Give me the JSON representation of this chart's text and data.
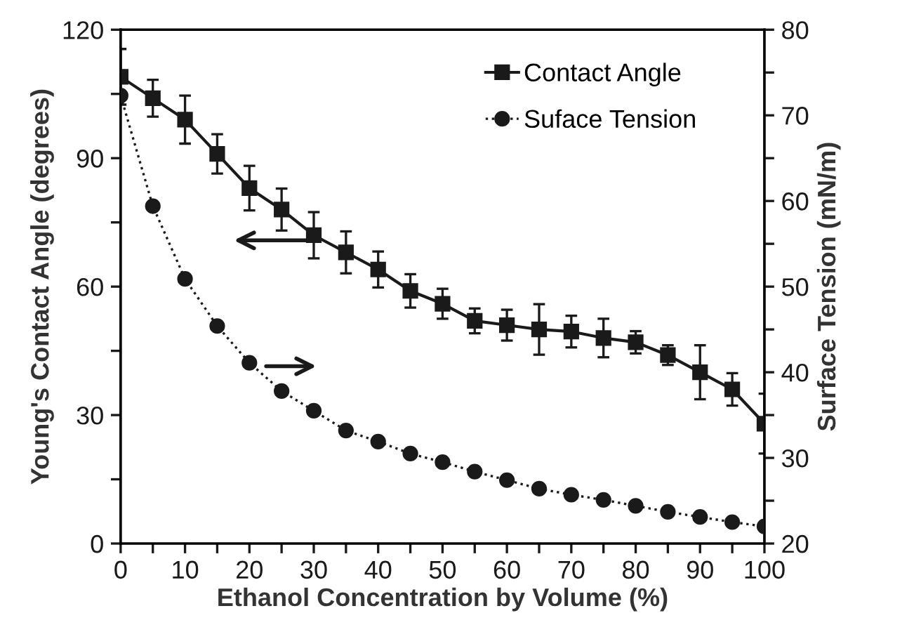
{
  "chart_data": {
    "type": "line",
    "xlabel": "Ethanol Concentration by Volume (%)",
    "ylabel": "Young's Contact Angle (degrees)",
    "y2label": "Surface Tension (mN/m)",
    "x": [
      0,
      5,
      10,
      15,
      20,
      25,
      30,
      35,
      40,
      45,
      50,
      55,
      60,
      65,
      70,
      75,
      80,
      85,
      90,
      95,
      100
    ],
    "series": [
      {
        "name": "Contact Angle",
        "color": "#1a1a1a",
        "marker": "square",
        "line_style": "solid",
        "values": [
          109,
          104,
          99,
          91,
          83,
          78,
          72,
          68,
          64,
          59,
          56,
          52,
          51,
          50,
          49.5,
          48,
          47,
          44,
          40,
          36,
          28
        ],
        "errors": [
          6.5,
          4.3,
          5.6,
          4.6,
          5.2,
          4.9,
          5.4,
          4.9,
          4.2,
          3.9,
          3.5,
          2.9,
          3.6,
          5.9,
          3.7,
          4.5,
          2.6,
          2.3,
          6.3,
          3.8,
          7
        ]
      },
      {
        "name": "Suface Tension",
        "color": "#1a1a1a",
        "marker": "circle",
        "line_style": "dotted",
        "axis": "y2",
        "values": [
          72.3,
          59.4,
          50.9,
          45.4,
          41.1,
          37.8,
          35.5,
          33.2,
          31.9,
          30.5,
          29.5,
          28.4,
          27.4,
          26.4,
          25.7,
          25.1,
          24.4,
          23.7,
          23.1,
          22.5,
          22.0
        ]
      }
    ],
    "xlim": [
      0,
      100
    ],
    "xticks": [
      0,
      {
        "value": 5,
        "label": null
      },
      10,
      {
        "value": 15,
        "label": null
      },
      20,
      {
        "value": 25,
        "label": null
      },
      30,
      {
        "value": 35,
        "label": null
      },
      40,
      {
        "value": 45,
        "label": null
      },
      50,
      {
        "value": 55,
        "label": null
      },
      60,
      {
        "value": 65,
        "label": null
      },
      70,
      {
        "value": 75,
        "label": null
      },
      80,
      {
        "value": 85,
        "label": null
      },
      90,
      {
        "value": 95,
        "label": null
      },
      100
    ],
    "ylim": [
      0,
      120
    ],
    "yticks": [
      0,
      {
        "value": 15,
        "label": null
      },
      30,
      {
        "value": 45,
        "label": null
      },
      60,
      {
        "value": 75,
        "label": null
      },
      90,
      {
        "value": 105,
        "label": null
      },
      120
    ],
    "y2lim": [
      20,
      80
    ],
    "y2ticks": [
      20,
      {
        "value": 25,
        "label": null
      },
      30,
      {
        "value": 35,
        "label": null
      },
      40,
      {
        "value": 45,
        "label": null
      },
      50,
      {
        "value": 55,
        "label": null
      },
      60,
      {
        "value": 65,
        "label": null
      },
      70,
      {
        "value": 75,
        "label": null
      },
      80
    ],
    "legend": "top right",
    "grid": false
  }
}
